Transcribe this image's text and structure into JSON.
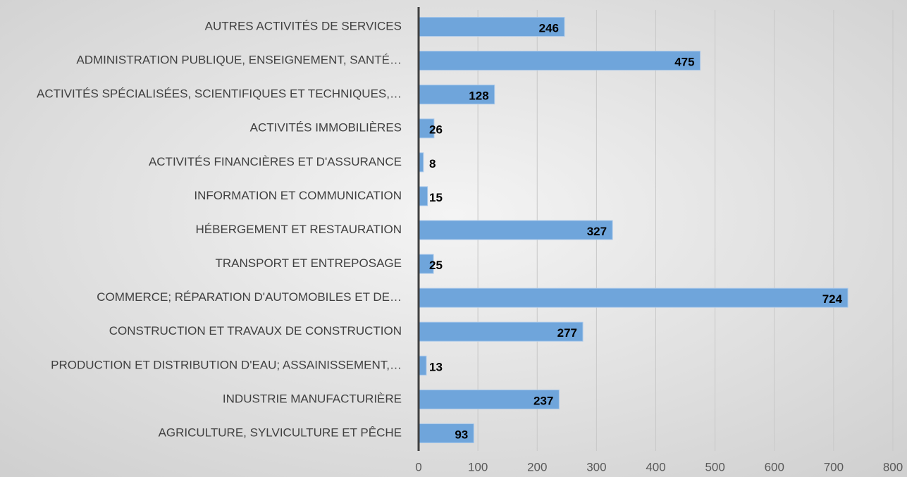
{
  "chart_data": {
    "type": "bar",
    "orientation": "horizontal",
    "categories": [
      "AUTRES ACTIVITÉS DE SERVICES",
      "ADMINISTRATION PUBLIQUE, ENSEIGNEMENT, SANTÉ…",
      "ACTIVITÉS SPÉCIALISÉES, SCIENTIFIQUES ET TECHNIQUES,…",
      "ACTIVITÉS IMMOBILIÈRES",
      "ACTIVITÉS FINANCIÈRES ET D'ASSURANCE",
      "INFORMATION ET COMMUNICATION",
      "HÉBERGEMENT ET RESTAURATION",
      "TRANSPORT ET ENTREPOSAGE",
      "COMMERCE; RÉPARATION D'AUTOMOBILES ET DE…",
      "CONSTRUCTION ET TRAVAUX DE CONSTRUCTION",
      "PRODUCTION ET DISTRIBUTION D'EAU; ASSAINISSEMENT,…",
      "INDUSTRIE MANUFACTURIÈRE",
      "AGRICULTURE, SYLVICULTURE ET PÊCHE"
    ],
    "values": [
      246,
      475,
      128,
      26,
      8,
      15,
      327,
      25,
      724,
      277,
      13,
      237,
      93
    ],
    "color": "#6fa5db",
    "xlim": [
      0,
      800
    ],
    "xticks": [
      0,
      100,
      200,
      300,
      400,
      500,
      600,
      700,
      800
    ],
    "grid": true
  }
}
